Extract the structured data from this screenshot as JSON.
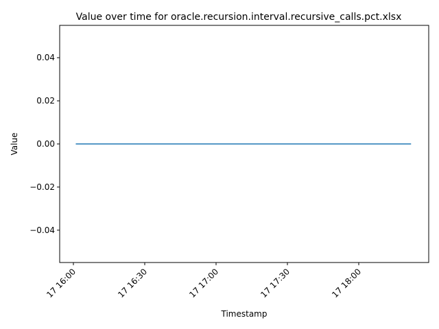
{
  "chart_data": {
    "type": "line",
    "title": "Value over time for oracle.recursion.interval.recursive_calls.pct.xlsx",
    "xlabel": "Timestamp",
    "ylabel": "Value",
    "x_ticks": [
      "17 16:00",
      "17 16:30",
      "17 17:00",
      "17 17:30",
      "17 18:00"
    ],
    "y_ticks": [
      "−0.04",
      "−0.02",
      "0.00",
      "0.02",
      "0.04"
    ],
    "y_tick_values": [
      -0.04,
      -0.02,
      0.0,
      0.02,
      0.04
    ],
    "ylim": [
      -0.055,
      0.055
    ],
    "xlim": [
      "16:00",
      "18:22"
    ],
    "grid": false,
    "series": [
      {
        "x": [
          "16:01",
          "18:22"
        ],
        "values": [
          0.0,
          0.0
        ],
        "color": "#1f77b4"
      }
    ]
  }
}
